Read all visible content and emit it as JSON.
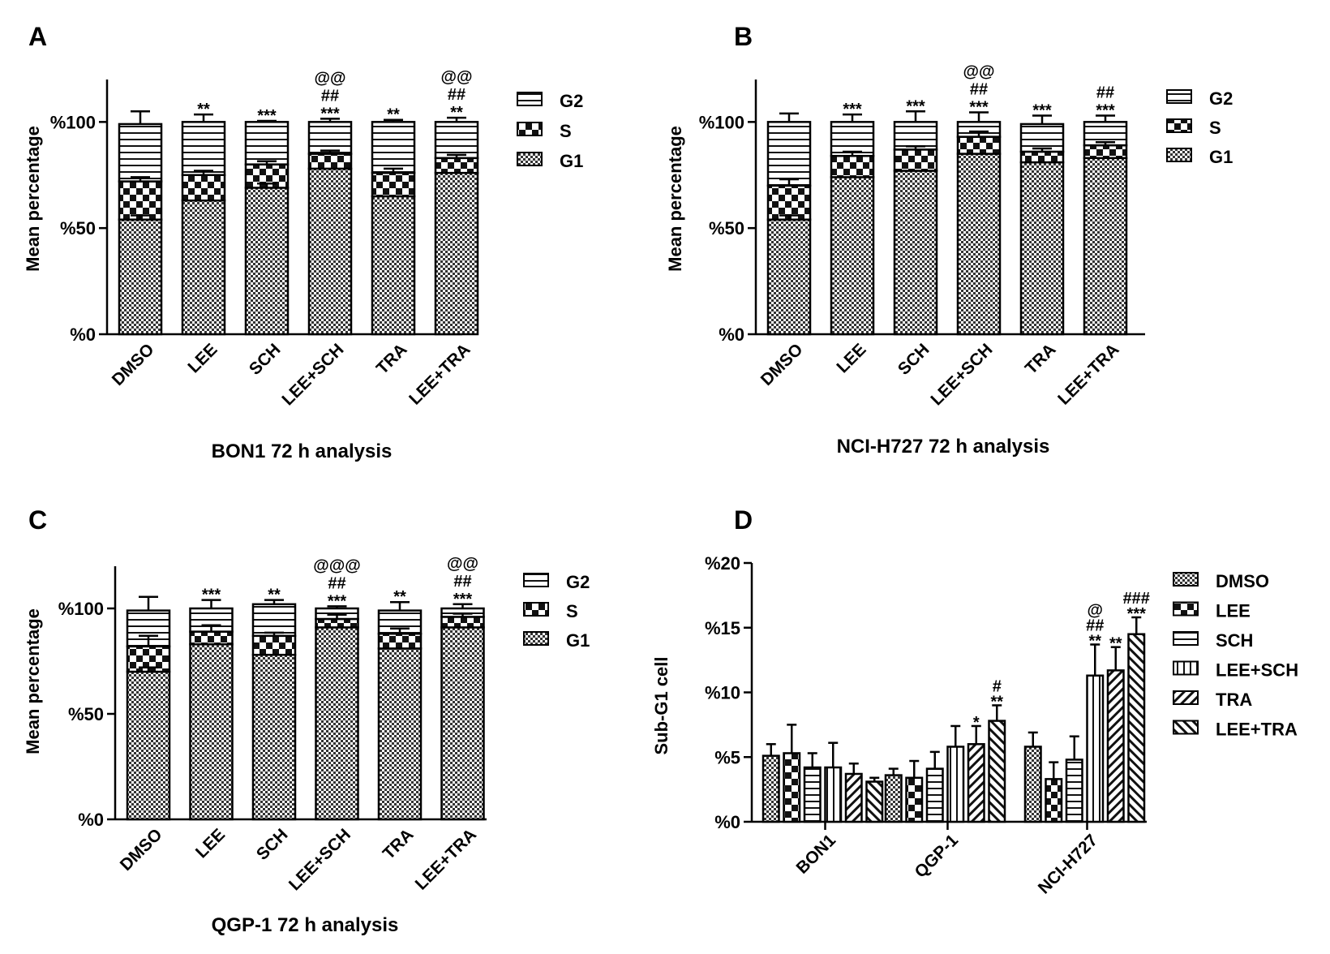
{
  "figure_colors": {
    "ink": "#000000",
    "paper": "#ffffff",
    "dark_fill": "#3a3a3a"
  },
  "panel_letters": [
    "A",
    "B",
    "C",
    "D"
  ],
  "chart_data": [
    {
      "type": "bar",
      "stacked": true,
      "panel": "A",
      "xlabel": "BON1 72 h analysis",
      "ylabel": "Mean percentage",
      "ylim": [
        0,
        120
      ],
      "yticks": [
        0,
        50,
        100
      ],
      "ytick_labels": [
        "%0",
        "%50",
        "%100"
      ],
      "categories": [
        "DMSO",
        "LEE",
        "SCH",
        "LEE+SCH",
        "TRA",
        "LEE+TRA"
      ],
      "series": [
        {
          "name": "G1",
          "pattern": "checker",
          "values": [
            54,
            63,
            69,
            78,
            65,
            76
          ],
          "errors": [
            2,
            0,
            2,
            0,
            0,
            0
          ]
        },
        {
          "name": "S",
          "pattern": "big-checker",
          "values": [
            18,
            12,
            11,
            7,
            11,
            7
          ],
          "errors": [
            2,
            2,
            1.5,
            1.5,
            2,
            1.5
          ]
        },
        {
          "name": "G2",
          "pattern": "horizontal",
          "values": [
            27,
            25,
            20,
            15,
            24,
            17
          ],
          "errors": [
            6,
            3.5,
            0.5,
            1.5,
            1,
            2
          ]
        }
      ],
      "annotations": [
        [],
        [
          "**"
        ],
        [
          "***"
        ],
        [
          "***",
          "##",
          "@@"
        ],
        [
          "**"
        ],
        [
          "**",
          "##",
          "@@"
        ]
      ],
      "legend": "right"
    },
    {
      "type": "bar",
      "stacked": true,
      "panel": "B",
      "xlabel": "NCI-H727 72 h analysis",
      "ylabel": "Mean percentage",
      "ylim": [
        0,
        120
      ],
      "yticks": [
        0,
        50,
        100
      ],
      "ytick_labels": [
        "%0",
        "%50",
        "%100"
      ],
      "categories": [
        "DMSO",
        "LEE",
        "SCH",
        "LEE+SCH",
        "TRA",
        "LEE+TRA"
      ],
      "series": [
        {
          "name": "G1",
          "pattern": "checker",
          "values": [
            54,
            74,
            77,
            85,
            81,
            83
          ],
          "errors": [
            2,
            0,
            0,
            0,
            0,
            0
          ]
        },
        {
          "name": "S",
          "pattern": "big-checker",
          "values": [
            16,
            10,
            10,
            8,
            5,
            6
          ],
          "errors": [
            3,
            2,
            1.5,
            2.5,
            1.5,
            1.5
          ]
        },
        {
          "name": "G2",
          "pattern": "horizontal",
          "values": [
            30,
            16,
            13,
            7,
            13,
            11
          ],
          "errors": [
            4,
            3.5,
            5,
            4.5,
            4,
            3
          ]
        }
      ],
      "annotations": [
        [],
        [
          "***"
        ],
        [
          "***"
        ],
        [
          "***",
          "##",
          "@@"
        ],
        [
          "***"
        ],
        [
          "***",
          "##"
        ]
      ],
      "legend": "right"
    },
    {
      "type": "bar",
      "stacked": true,
      "panel": "C",
      "xlabel": "QGP-1 72 h analysis",
      "ylabel": "Mean percentage",
      "ylim": [
        0,
        120
      ],
      "yticks": [
        0,
        50,
        100
      ],
      "ytick_labels": [
        "%0",
        "%50",
        "%100"
      ],
      "categories": [
        "DMSO",
        "LEE",
        "SCH",
        "LEE+SCH",
        "TRA",
        "LEE+TRA"
      ],
      "series": [
        {
          "name": "G1",
          "pattern": "checker",
          "values": [
            70,
            83,
            78,
            91,
            81,
            91
          ],
          "errors": [
            2,
            0,
            0,
            0,
            0,
            0
          ]
        },
        {
          "name": "S",
          "pattern": "big-checker",
          "values": [
            12,
            6,
            9,
            4,
            7,
            5
          ],
          "errors": [
            5,
            3,
            1.5,
            2,
            2.5,
            1.5
          ]
        },
        {
          "name": "G2",
          "pattern": "horizontal",
          "values": [
            17,
            11,
            15,
            5,
            11,
            4
          ],
          "errors": [
            6.5,
            4,
            2,
            1,
            4,
            2
          ]
        }
      ],
      "annotations": [
        [],
        [
          "***"
        ],
        [
          "**"
        ],
        [
          "***",
          "##",
          "@@@"
        ],
        [
          "**"
        ],
        [
          "***",
          "##",
          "@@"
        ]
      ],
      "legend": "right"
    },
    {
      "type": "bar",
      "stacked": false,
      "panel": "D",
      "xlabel": "",
      "ylabel": "Sub-G1 cell",
      "ylim": [
        0,
        20
      ],
      "yticks": [
        0,
        5,
        10,
        15,
        20
      ],
      "ytick_labels": [
        "%0",
        "%5",
        "%10",
        "%15",
        "%20"
      ],
      "categories": [
        "BON1",
        "QGP-1",
        "NCI-H727"
      ],
      "series": [
        {
          "name": "DMSO",
          "pattern": "checker",
          "values": [
            5.1,
            3.6,
            5.8
          ],
          "errors": [
            0.9,
            0.5,
            1.1
          ]
        },
        {
          "name": "LEE",
          "pattern": "big-checker",
          "values": [
            5.3,
            3.4,
            3.3
          ],
          "errors": [
            2.2,
            1.3,
            1.3
          ]
        },
        {
          "name": "SCH",
          "pattern": "horizontal",
          "values": [
            4.2,
            4.1,
            4.8
          ],
          "errors": [
            1.1,
            1.3,
            1.8
          ]
        },
        {
          "name": "LEE+SCH",
          "pattern": "vertical",
          "values": [
            4.2,
            5.8,
            11.3
          ],
          "errors": [
            1.9,
            1.6,
            2.4
          ]
        },
        {
          "name": "TRA",
          "pattern": "diag-up",
          "values": [
            3.7,
            6.0,
            11.7
          ],
          "errors": [
            0.8,
            1.4,
            1.8
          ]
        },
        {
          "name": "LEE+TRA",
          "pattern": "diag-down",
          "values": [
            3.1,
            7.8,
            14.5
          ],
          "errors": [
            0.3,
            1.2,
            1.3
          ]
        }
      ],
      "annotations": {
        "QGP-1": [
          [],
          [],
          [],
          [],
          [
            "*"
          ],
          [
            "**",
            "#"
          ]
        ],
        "NCI-H727": [
          [],
          [],
          [],
          [
            "**",
            "##",
            "@"
          ],
          [
            "**"
          ],
          [
            "***",
            "###"
          ]
        ]
      },
      "legend": "right"
    }
  ]
}
